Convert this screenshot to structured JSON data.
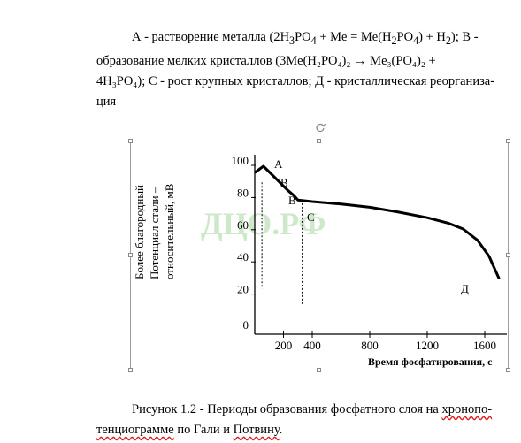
{
  "text": {
    "line1_prefix": "А - растворение металла (2H",
    "line1_rest": "PO",
    "line1_b": " + Me = Me(H",
    "line1_c": "PO",
    "line1_d": ") + H",
    "line1_e": "); В -",
    "line2_words": [
      "образование",
      "мелких",
      "кристаллов",
      "(3Me(H₂PO₄)₂ → Me₃(PO₄)₂ +"
    ],
    "line3": "4H₃PO₄); С - рост крупных кристаллов; Д - кристаллическая реорганиза-",
    "line4": "ция",
    "sub2": "2",
    "sub3": "3",
    "sub4": "4"
  },
  "figure": {
    "ylabel_line1": "Более благородный",
    "ylabel_line2": "Потенциал стали –",
    "ylabel_line3": "относительный, мВ",
    "xlabel": "Время фосфатирования, с",
    "watermark": "ДЦО.РФ",
    "region_labels": [
      "А",
      "В",
      "В",
      "С",
      "Д"
    ]
  },
  "chart_data": {
    "type": "line",
    "xlabel": "Время фосфатирования, с",
    "ylabel": "Более благородный Потенциал стали – относительный, мВ",
    "x_ticks": [
      "200",
      "400",
      "800",
      "1200",
      "1600"
    ],
    "y_ticks": [
      "100",
      "80",
      "60",
      "40",
      "20",
      "0"
    ],
    "series": [
      {
        "x": [
          0,
          60,
          230,
          270,
          300,
          400,
          600,
          800,
          1000,
          1200,
          1350,
          1450,
          1550,
          1630,
          1700
        ],
        "y": [
          96,
          100,
          85,
          82,
          79,
          78,
          76.5,
          74.5,
          71.5,
          68,
          64.5,
          61,
          54,
          44,
          30
        ]
      }
    ],
    "region_boundaries_x": [
      50,
      280,
      330,
      1400
    ],
    "annotations": [
      "А",
      "В",
      "В",
      "С",
      "Д"
    ]
  },
  "caption": {
    "prefix": "Рисунок 1.2 - Периоды образования фосфатного слоя на ",
    "squiggle1": "хронопо-",
    "line2_squiggle": "тенциограмме",
    "line2_rest": " по Гали и ",
    "squiggle2": "Потвину",
    "end": "."
  }
}
